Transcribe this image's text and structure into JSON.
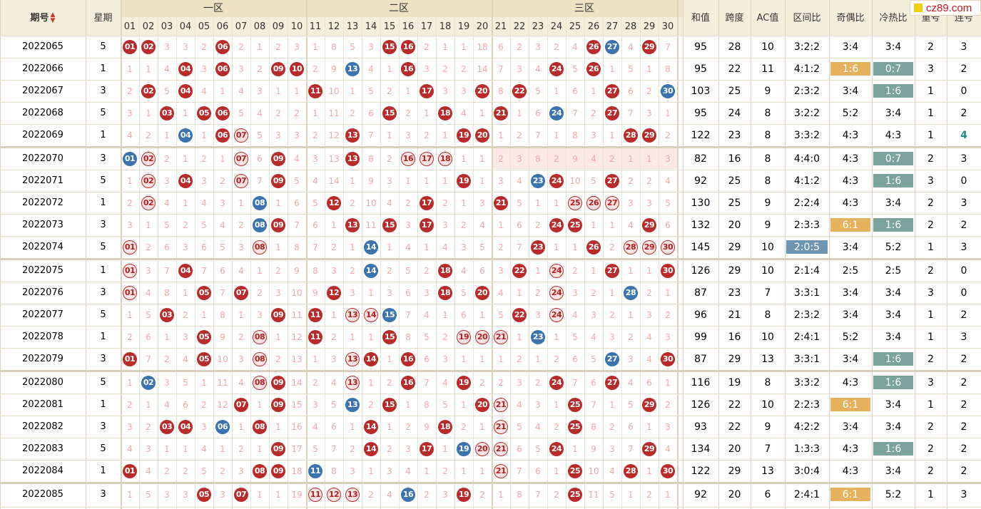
{
  "headers": {
    "issue": "期号",
    "weekday": "星期",
    "zones": [
      "一区",
      "二区",
      "三区"
    ],
    "numbers": [
      "01",
      "02",
      "03",
      "04",
      "05",
      "06",
      "07",
      "08",
      "09",
      "10",
      "11",
      "12",
      "13",
      "14",
      "15",
      "16",
      "17",
      "18",
      "19",
      "20",
      "21",
      "22",
      "23",
      "24",
      "25",
      "26",
      "27",
      "28",
      "29",
      "30"
    ],
    "stats": [
      "和值",
      "跨度",
      "AC值",
      "区间比",
      "奇偶比",
      "冷热比",
      "重号",
      "连号"
    ]
  },
  "colors": {
    "red_ball": "#b92b2b",
    "blue_ball": "#3a73ad",
    "gold_badge": "#e4b15c",
    "teal_badge": "#7ba39c",
    "blue_badge": "#6f96b0",
    "header_bg": "#f4eedd",
    "miss_text": "#f2a7a7"
  },
  "logo": {
    "text": "cz89.com"
  },
  "rows": [
    {
      "issue": "2022065",
      "week": "5",
      "cells": [
        "b:01",
        "b:02",
        "3",
        "3",
        "2",
        "b:06",
        "2",
        "1",
        "2",
        "3",
        "1",
        "8",
        "5",
        "3",
        "b:15",
        "b:16",
        "2",
        "1",
        "1",
        "18",
        "6",
        "2",
        "3",
        "2",
        "4",
        "b:26",
        "u:27",
        "4",
        "b:29",
        "7"
      ],
      "sum": "95",
      "span": "28",
      "ac": "10",
      "zone": "3:2:2",
      "oe": "3:4",
      "ch": "3:4",
      "rep": "2",
      "con": "3"
    },
    {
      "issue": "2022066",
      "week": "1",
      "cells": [
        "1",
        "1",
        "4",
        "b:04",
        "3",
        "b:06",
        "3",
        "2",
        "b:09",
        "b:10",
        "2",
        "9",
        "u:13",
        "4",
        "1",
        "b:16",
        "3",
        "2",
        "2",
        "14",
        "7",
        "3",
        "4",
        "b:24",
        "5",
        "b:26",
        "1",
        "5",
        "1",
        "8"
      ],
      "sum": "95",
      "span": "22",
      "ac": "11",
      "zone": "4:1:2",
      "oe": "1:6",
      "ch": "0:7",
      "rep": "3",
      "con": "2",
      "oe_b": "gold",
      "ch_b": "teal"
    },
    {
      "issue": "2022067",
      "week": "3",
      "cells": [
        "2",
        "b:02",
        "5",
        "b:04",
        "4",
        "1",
        "4",
        "3",
        "1",
        "1",
        "b:11",
        "10",
        "1",
        "5",
        "2",
        "1",
        "b:17",
        "3",
        "3",
        "b:20",
        "8",
        "b:22",
        "5",
        "1",
        "6",
        "1",
        "b:27",
        "6",
        "2",
        "u:30"
      ],
      "sum": "103",
      "span": "25",
      "ac": "9",
      "zone": "2:3:2",
      "oe": "3:4",
      "ch": "1:6",
      "rep": "1",
      "con": "0",
      "ch_b": "teal"
    },
    {
      "issue": "2022068",
      "week": "5",
      "cells": [
        "3",
        "1",
        "b:03",
        "1",
        "b:05",
        "b:06",
        "5",
        "4",
        "2",
        "2",
        "1",
        "11",
        "2",
        "6",
        "b:15",
        "2",
        "1",
        "b:18",
        "4",
        "1",
        "b:21",
        "1",
        "6",
        "u:24",
        "7",
        "2",
        "b:27",
        "7",
        "3",
        "1"
      ],
      "sum": "95",
      "span": "24",
      "ac": "8",
      "zone": "3:2:2",
      "oe": "5:2",
      "ch": "3:4",
      "rep": "1",
      "con": "2"
    },
    {
      "issue": "2022069",
      "week": "1",
      "cells": [
        "4",
        "2",
        "1",
        "u:04",
        "1",
        "b:06",
        "r:07",
        "5",
        "3",
        "3",
        "2",
        "12",
        "b:13",
        "7",
        "1",
        "3",
        "2",
        "1",
        "b:19",
        "b:20",
        "1",
        "2",
        "7",
        "1",
        "8",
        "3",
        "1",
        "b:28",
        "b:29",
        "2"
      ],
      "sum": "122",
      "span": "23",
      "ac": "8",
      "zone": "3:3:2",
      "oe": "4:3",
      "ch": "4:3",
      "rep": "1",
      "con": "4",
      "con_c": "#1b8a8a"
    },
    {
      "issue": "2022070",
      "week": "3",
      "cells": [
        "u:01",
        "r:02",
        "2",
        "1",
        "2",
        "1",
        "r:07",
        "6",
        "b:09",
        "4",
        "3",
        "13",
        "b:13",
        "8",
        "2",
        "r:16",
        "r:17",
        "r:18",
        "1",
        "1",
        "2",
        "3",
        "8",
        "2",
        "9",
        "4",
        "2",
        "1",
        "1",
        "3"
      ],
      "sum": "82",
      "span": "16",
      "ac": "8",
      "zone": "4:4:0",
      "oe": "4:3",
      "ch": "0:7",
      "rep": "2",
      "con": "3",
      "ch_b": "teal",
      "pink3": true
    },
    {
      "issue": "2022071",
      "week": "5",
      "cells": [
        "1",
        "r:02",
        "3",
        "b:04",
        "3",
        "2",
        "r:07",
        "7",
        "b:09",
        "5",
        "4",
        "14",
        "1",
        "9",
        "3",
        "1",
        "1",
        "1",
        "b:19",
        "1",
        "3",
        "4",
        "u:23",
        "b:24",
        "10",
        "5",
        "b:27",
        "2",
        "2",
        "4"
      ],
      "sum": "92",
      "span": "25",
      "ac": "8",
      "zone": "4:1:2",
      "oe": "4:3",
      "ch": "1:6",
      "rep": "3",
      "con": "0",
      "ch_b": "teal"
    },
    {
      "issue": "2022072",
      "week": "1",
      "cells": [
        "2",
        "r:02",
        "4",
        "1",
        "4",
        "3",
        "1",
        "u:08",
        "1",
        "6",
        "5",
        "b:12",
        "2",
        "10",
        "4",
        "2",
        "b:17",
        "2",
        "1",
        "3",
        "b:21",
        "5",
        "1",
        "1",
        "r:25",
        "r:26",
        "r:27",
        "3",
        "3",
        "5"
      ],
      "sum": "130",
      "span": "25",
      "ac": "9",
      "zone": "2:2:4",
      "oe": "4:3",
      "ch": "3:4",
      "rep": "2",
      "con": "3"
    },
    {
      "issue": "2022073",
      "week": "3",
      "cells": [
        "3",
        "1",
        "5",
        "2",
        "5",
        "4",
        "2",
        "u:08",
        "b:09",
        "7",
        "6",
        "1",
        "b:13",
        "11",
        "b:15",
        "3",
        "b:17",
        "3",
        "2",
        "4",
        "1",
        "6",
        "2",
        "b:24",
        "b:25",
        "1",
        "1",
        "4",
        "b:29",
        "6"
      ],
      "sum": "132",
      "span": "20",
      "ac": "9",
      "zone": "2:3:3",
      "oe": "6:1",
      "ch": "1:6",
      "rep": "2",
      "con": "2",
      "oe_b": "gold",
      "ch_b": "teal"
    },
    {
      "issue": "2022074",
      "week": "5",
      "cells": [
        "r:01",
        "2",
        "6",
        "3",
        "6",
        "5",
        "3",
        "r:08",
        "1",
        "8",
        "7",
        "2",
        "1",
        "u:14",
        "1",
        "4",
        "1",
        "4",
        "3",
        "5",
        "2",
        "7",
        "b:23",
        "1",
        "1",
        "b:26",
        "2",
        "r:28",
        "r:29",
        "r:30"
      ],
      "sum": "145",
      "span": "29",
      "ac": "10",
      "zone": "2:0:5",
      "oe": "3:4",
      "ch": "5:2",
      "rep": "1",
      "con": "3",
      "zone_b": "blue"
    },
    {
      "issue": "2022075",
      "week": "1",
      "cells": [
        "r:01",
        "3",
        "7",
        "b:04",
        "7",
        "6",
        "4",
        "1",
        "2",
        "9",
        "8",
        "3",
        "2",
        "u:14",
        "2",
        "5",
        "2",
        "b:18",
        "4",
        "6",
        "3",
        "b:22",
        "1",
        "r:24",
        "2",
        "1",
        "b:27",
        "1",
        "1",
        "b:30"
      ],
      "sum": "126",
      "span": "29",
      "ac": "10",
      "zone": "2:1:4",
      "oe": "2:5",
      "ch": "2:5",
      "rep": "2",
      "con": "0"
    },
    {
      "issue": "2022076",
      "week": "3",
      "cells": [
        "r:01",
        "4",
        "8",
        "1",
        "b:05",
        "7",
        "b:07",
        "2",
        "3",
        "10",
        "9",
        "b:12",
        "3",
        "1",
        "3",
        "6",
        "3",
        "b:18",
        "5",
        "b:20",
        "4",
        "1",
        "2",
        "r:24",
        "3",
        "2",
        "1",
        "u:28",
        "2",
        "1"
      ],
      "sum": "87",
      "span": "23",
      "ac": "7",
      "zone": "3:3:1",
      "oe": "3:4",
      "ch": "3:4",
      "rep": "3",
      "con": "0"
    },
    {
      "issue": "2022077",
      "week": "5",
      "cells": [
        "1",
        "5",
        "b:03",
        "2",
        "1",
        "8",
        "1",
        "3",
        "b:09",
        "11",
        "b:11",
        "1",
        "r:13",
        "r:14",
        "u:15",
        "7",
        "4",
        "1",
        "6",
        "1",
        "5",
        "b:22",
        "3",
        "r:24",
        "4",
        "3",
        "2",
        "1",
        "3",
        "2"
      ],
      "sum": "96",
      "span": "21",
      "ac": "8",
      "zone": "2:3:2",
      "oe": "3:4",
      "ch": "3:4",
      "rep": "1",
      "con": "2"
    },
    {
      "issue": "2022078",
      "week": "1",
      "cells": [
        "2",
        "6",
        "1",
        "3",
        "b:05",
        "9",
        "2",
        "r:08",
        "1",
        "12",
        "b:11",
        "2",
        "1",
        "1",
        "b:15",
        "8",
        "5",
        "2",
        "r:19",
        "r:20",
        "r:21",
        "1",
        "u:23",
        "1",
        "5",
        "4",
        "3",
        "2",
        "4",
        "3"
      ],
      "sum": "99",
      "span": "16",
      "ac": "10",
      "zone": "2:4:1",
      "oe": "5:2",
      "ch": "3:4",
      "rep": "1",
      "con": "3"
    },
    {
      "issue": "2022079",
      "week": "3",
      "cells": [
        "b:01",
        "7",
        "2",
        "4",
        "b:05",
        "10",
        "3",
        "r:08",
        "2",
        "13",
        "1",
        "3",
        "r:13",
        "b:14",
        "1",
        "b:16",
        "6",
        "3",
        "1",
        "1",
        "1",
        "2",
        "1",
        "2",
        "6",
        "5",
        "u:27",
        "3",
        "4",
        "b:30"
      ],
      "sum": "87",
      "span": "29",
      "ac": "13",
      "zone": "3:3:1",
      "oe": "3:4",
      "ch": "1:6",
      "rep": "2",
      "con": "2",
      "ch_b": "teal"
    },
    {
      "issue": "2022080",
      "week": "5",
      "cells": [
        "1",
        "u:02",
        "3",
        "5",
        "1",
        "11",
        "4",
        "r:08",
        "b:09",
        "14",
        "2",
        "4",
        "r:13",
        "1",
        "2",
        "b:16",
        "7",
        "4",
        "b:19",
        "2",
        "2",
        "3",
        "2",
        "b:24",
        "7",
        "6",
        "b:27",
        "4",
        "6",
        "1"
      ],
      "sum": "116",
      "span": "19",
      "ac": "8",
      "zone": "3:3:2",
      "oe": "4:3",
      "ch": "1:6",
      "rep": "3",
      "con": "2",
      "ch_b": "teal"
    },
    {
      "issue": "2022081",
      "week": "1",
      "cells": [
        "2",
        "1",
        "4",
        "6",
        "2",
        "12",
        "b:07",
        "1",
        "b:09",
        "15",
        "3",
        "5",
        "u:13",
        "2",
        "b:15",
        "1",
        "8",
        "5",
        "1",
        "b:20",
        "r:21",
        "4",
        "3",
        "1",
        "b:25",
        "7",
        "1",
        "5",
        "b:29",
        "2"
      ],
      "sum": "126",
      "span": "22",
      "ac": "10",
      "zone": "2:2:3",
      "oe": "6:1",
      "ch": "3:4",
      "rep": "1",
      "con": "2",
      "oe_b": "gold"
    },
    {
      "issue": "2022082",
      "week": "3",
      "cells": [
        "3",
        "2",
        "b:03",
        "b:04",
        "3",
        "u:06",
        "1",
        "b:08",
        "1",
        "16",
        "4",
        "6",
        "1",
        "b:14",
        "1",
        "2",
        "9",
        "b:18",
        "2",
        "1",
        "r:21",
        "5",
        "4",
        "2",
        "b:25",
        "8",
        "2",
        "6",
        "1",
        "3"
      ],
      "sum": "93",
      "span": "22",
      "ac": "9",
      "zone": "4:2:2",
      "oe": "3:4",
      "ch": "3:4",
      "rep": "2",
      "con": "2"
    },
    {
      "issue": "2022083",
      "week": "5",
      "cells": [
        "4",
        "3",
        "1",
        "1",
        "4",
        "1",
        "2",
        "1",
        "b:09",
        "17",
        "5",
        "7",
        "2",
        "b:14",
        "2",
        "3",
        "b:17",
        "1",
        "u:19",
        "r:20",
        "r:21",
        "6",
        "5",
        "b:24",
        "1",
        "9",
        "3",
        "7",
        "b:29",
        "4"
      ],
      "sum": "134",
      "span": "20",
      "ac": "7",
      "zone": "1:3:3",
      "oe": "4:3",
      "ch": "1:6",
      "rep": "2",
      "con": "2",
      "ch_b": "teal"
    },
    {
      "issue": "2022084",
      "week": "1",
      "cells": [
        "b:01",
        "4",
        "2",
        "2",
        "5",
        "2",
        "3",
        "b:08",
        "b:09",
        "18",
        "u:11",
        "8",
        "3",
        "1",
        "3",
        "4",
        "1",
        "2",
        "1",
        "1",
        "r:21",
        "7",
        "6",
        "1",
        "b:25",
        "10",
        "4",
        "b:28",
        "1",
        "b:30"
      ],
      "sum": "122",
      "span": "29",
      "ac": "13",
      "zone": "3:0:4",
      "oe": "4:3",
      "ch": "3:4",
      "rep": "2",
      "con": "2"
    },
    {
      "issue": "2022085",
      "week": "3",
      "cells": [
        "1",
        "5",
        "3",
        "3",
        "b:05",
        "3",
        "b:07",
        "1",
        "1",
        "19",
        "r:11",
        "r:12",
        "r:13",
        "2",
        "4",
        "u:16",
        "2",
        "3",
        "b:19",
        "2",
        "1",
        "8",
        "7",
        "2",
        "b:25",
        "11",
        "5",
        "1",
        "2",
        "1"
      ],
      "sum": "92",
      "span": "20",
      "ac": "6",
      "zone": "2:4:1",
      "oe": "6:1",
      "ch": "5:2",
      "rep": "1",
      "con": "3",
      "oe_b": "gold"
    }
  ]
}
